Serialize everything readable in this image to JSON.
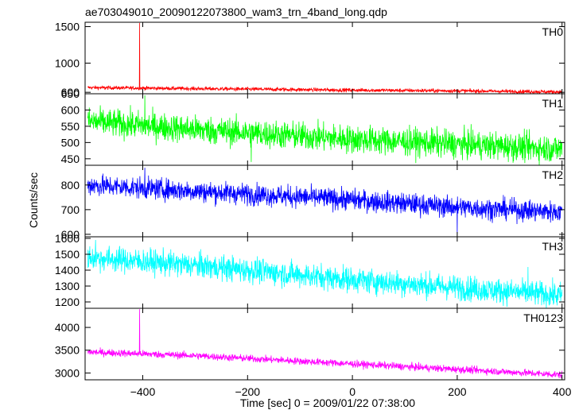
{
  "chart_data": {
    "type": "line",
    "title": "ae703049010_20090122073800_wam3_trn_4band_long.qdp",
    "xlabel": "Time [sec] 0 = 2009/01/22 07:38:00",
    "ylabel": "Counts/sec",
    "xlim": [
      -510,
      405
    ],
    "x_ticks": [
      -400,
      -200,
      0,
      200,
      400
    ],
    "x_tick_labels": [
      "−400",
      "−200",
      "0",
      "200",
      "400"
    ],
    "grid": false,
    "legend": "none",
    "panels": [
      {
        "name": "TH0",
        "color": "#ff0000",
        "ylim": [
          580,
          1560
        ],
        "y_ticks": [
          600,
          1000,
          1500
        ],
        "y_tick_labels": [
          "600",
          "1000",
          "1500"
        ],
        "x_range": [
          -505,
          400
        ],
        "trend": [
          [
            -505,
            665
          ],
          [
            -300,
            650
          ],
          [
            0,
            630
          ],
          [
            200,
            620
          ],
          [
            400,
            605
          ]
        ],
        "noise": 18,
        "spikes": [
          [
            -406,
            1550
          ]
        ]
      },
      {
        "name": "TH1",
        "color": "#00ff00",
        "ylim": [
          430,
          650
        ],
        "y_ticks": [
          450,
          500,
          550,
          600,
          650
        ],
        "y_tick_labels": [
          "450",
          "500",
          "550",
          "600",
          "650"
        ],
        "x_range": [
          -505,
          400
        ],
        "trend": [
          [
            -505,
            565
          ],
          [
            -300,
            540
          ],
          [
            0,
            510
          ],
          [
            200,
            495
          ],
          [
            400,
            480
          ]
        ],
        "noise": 30,
        "spikes": [
          [
            -396,
            645
          ],
          [
            -193,
            440
          ]
        ]
      },
      {
        "name": "TH2",
        "color": "#0000ff",
        "ylim": [
          590,
          880
        ],
        "y_ticks": [
          600,
          700,
          800
        ],
        "y_tick_labels": [
          "600",
          "700",
          "800"
        ],
        "x_range": [
          -505,
          400
        ],
        "trend": [
          [
            -505,
            800
          ],
          [
            -300,
            775
          ],
          [
            0,
            740
          ],
          [
            200,
            710
          ],
          [
            400,
            690
          ]
        ],
        "noise": 30,
        "spikes": [
          [
            200,
            600
          ],
          [
            -396,
            870
          ]
        ]
      },
      {
        "name": "TH3",
        "color": "#00ffff",
        "ylim": [
          1160,
          1610
        ],
        "y_ticks": [
          1200,
          1300,
          1400,
          1500,
          1600
        ],
        "y_tick_labels": [
          "1200",
          "1300",
          "1400",
          "1500",
          "1600"
        ],
        "x_range": [
          -505,
          400
        ],
        "trend": [
          [
            -505,
            1480
          ],
          [
            -300,
            1430
          ],
          [
            0,
            1340
          ],
          [
            200,
            1290
          ],
          [
            400,
            1240
          ]
        ],
        "noise": 55,
        "spikes": [
          [
            -490,
            1590
          ],
          [
            335,
            1420
          ]
        ]
      },
      {
        "name": "TH0123",
        "color": "#ff00ff",
        "ylim": [
          2850,
          4420
        ],
        "y_ticks": [
          3000,
          3500,
          4000
        ],
        "y_tick_labels": [
          "3000",
          "3500",
          "4000"
        ],
        "x_range": [
          -505,
          400
        ],
        "trend": [
          [
            -505,
            3460
          ],
          [
            -300,
            3380
          ],
          [
            0,
            3200
          ],
          [
            200,
            3080
          ],
          [
            400,
            2960
          ]
        ],
        "noise": 55,
        "spikes": [
          [
            -406,
            4400
          ]
        ]
      }
    ]
  }
}
